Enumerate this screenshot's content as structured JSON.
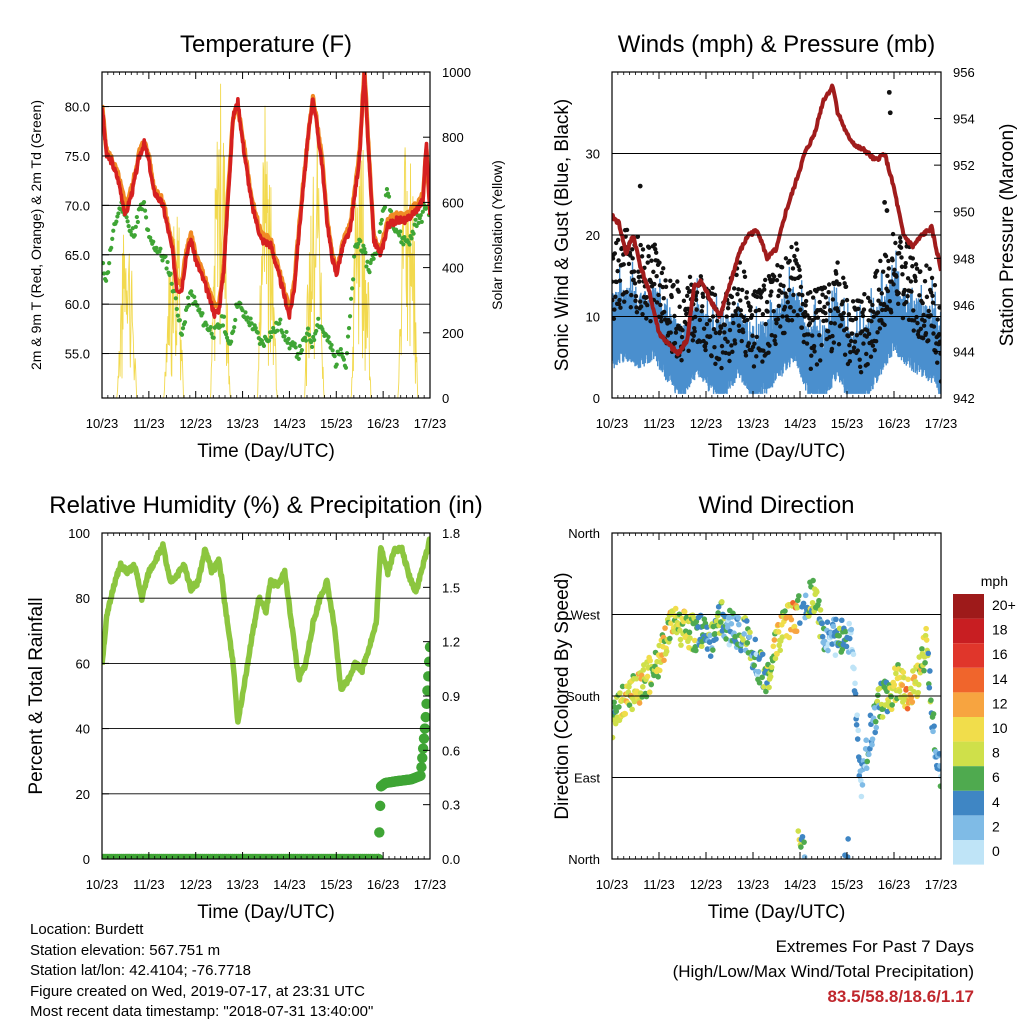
{
  "panels": {
    "temperature": {
      "title": "Temperature (F)",
      "xlabel": "Time (Day/UTC)",
      "ylabel_left": "2m & 9m T (Red, Orange) & 2m Td (Green)",
      "ylabel_right": "Solar Insolation (Yellow)"
    },
    "winds": {
      "title": "Winds (mph) & Pressure (mb)",
      "xlabel": "Time (Day/UTC)",
      "ylabel_left": "Sonic Wind & Gust (Blue, Black)",
      "ylabel_right": "Station Pressure (Maroon)"
    },
    "humidity": {
      "title": "Relative Humidity (%) & Precipitation (in)",
      "xlabel": "Time (Day/UTC)",
      "ylabel_left": "Percent & Total Rainfall"
    },
    "direction": {
      "title": "Wind Direction",
      "xlabel": "Time (Day/UTC)",
      "ylabel_left": "Direction (Colored By Speed)"
    }
  },
  "info": {
    "location": "Location: Burdett",
    "elevation": "Station elevation: 567.751 m",
    "latlon": "Station lat/lon: 42.4104; -76.7718",
    "created": "Figure created on Wed, 2019-07-17, at 23:31 UTC",
    "recent": "Most recent data timestamp: \"2018-07-31 13:40:00\""
  },
  "extremes": {
    "title": "Extremes For Past 7 Days",
    "subtitle": "(High/Low/Max Wind/Total Precipitation)",
    "values": "83.5/58.8/18.6/1.17",
    "value_color": "#c0272d"
  },
  "chart_data": [
    {
      "type": "line",
      "title": "Temperature (F)",
      "xlabel": "Time (Day/UTC)",
      "ylabel": "2m & 9m T (Red, Orange) & 2m Td (Green)",
      "y2label": "Solar Insolation (Yellow)",
      "x_ticks": [
        "10/23",
        "11/23",
        "12/23",
        "13/23",
        "14/23",
        "15/23",
        "16/23",
        "17/23"
      ],
      "xlim": [
        0,
        7
      ],
      "ylim": [
        50.5,
        83.5
      ],
      "y_ticks": [
        "55.0",
        "60.0",
        "65.0",
        "70.0",
        "75.0",
        "80.0"
      ],
      "y2lim": [
        0,
        1000
      ],
      "y2_ticks": [
        "0",
        "200",
        "400",
        "600",
        "800",
        "1000"
      ],
      "grid": "horizontal",
      "colors": {
        "t2m": "#d62020",
        "t9m": "#f08a24",
        "td": "#3fa535",
        "solar": "#f2d94e"
      },
      "series": [
        {
          "key": "t9m",
          "axis": "left",
          "style": "line",
          "x": [
            0,
            0.1,
            0.2,
            0.35,
            0.5,
            0.65,
            0.8,
            0.9,
            1,
            1.1,
            1.3,
            1.5,
            1.6,
            1.7,
            1.8,
            1.9,
            2,
            2.2,
            2.4,
            2.5,
            2.6,
            2.7,
            2.8,
            2.9,
            3,
            3.2,
            3.4,
            3.6,
            3.8,
            4,
            4.1,
            4.2,
            4.3,
            4.4,
            4.5,
            4.6,
            4.7,
            4.8,
            4.9,
            5,
            5.15,
            5.3,
            5.5,
            5.6,
            5.7,
            5.8,
            5.95,
            6.1,
            6.3,
            6.5,
            6.7,
            6.85,
            6.92,
            7
          ],
          "y": [
            80.2,
            75.5,
            74.8,
            73.0,
            70.0,
            72.0,
            75.5,
            76.5,
            75.0,
            72.0,
            70.5,
            66.0,
            62.5,
            62.0,
            65.5,
            67.0,
            65.0,
            62.5,
            59.8,
            60.0,
            64.0,
            72.0,
            79.0,
            80.0,
            77.0,
            70.5,
            67.0,
            66.5,
            63.0,
            59.5,
            62.0,
            67.5,
            72.5,
            77.0,
            81.0,
            78.0,
            74.5,
            69.0,
            65.5,
            63.5,
            66.5,
            68.0,
            75.5,
            84.0,
            75.0,
            67.0,
            65.5,
            68.5,
            69.0,
            69.0,
            70.0,
            71.0,
            76.0,
            69.5
          ]
        },
        {
          "key": "t2m",
          "axis": "left",
          "style": "line",
          "x": [
            0,
            0.1,
            0.2,
            0.35,
            0.5,
            0.65,
            0.8,
            0.9,
            1,
            1.1,
            1.3,
            1.5,
            1.6,
            1.7,
            1.8,
            1.9,
            2,
            2.2,
            2.4,
            2.5,
            2.6,
            2.7,
            2.8,
            2.9,
            3,
            3.2,
            3.4,
            3.6,
            3.8,
            4,
            4.1,
            4.2,
            4.3,
            4.4,
            4.5,
            4.6,
            4.7,
            4.8,
            4.9,
            5,
            5.15,
            5.3,
            5.5,
            5.6,
            5.7,
            5.8,
            5.95,
            6.1,
            6.3,
            6.5,
            6.7,
            6.85,
            6.92,
            7
          ],
          "y": [
            80.0,
            75.0,
            74.5,
            72.5,
            69.0,
            71.5,
            75.0,
            76.3,
            74.5,
            71.5,
            70.0,
            65.5,
            61.5,
            61.5,
            65.0,
            66.5,
            64.5,
            62.0,
            59.0,
            59.5,
            63.5,
            71.5,
            79.0,
            80.5,
            76.5,
            70.0,
            66.5,
            66.0,
            62.5,
            58.8,
            61.5,
            67.0,
            72.0,
            77.0,
            81.0,
            77.5,
            74.0,
            68.5,
            65.0,
            63.0,
            66.0,
            67.5,
            75.0,
            83.5,
            74.5,
            66.5,
            65.0,
            68.0,
            68.5,
            68.5,
            69.5,
            70.5,
            76.5,
            69.0
          ]
        },
        {
          "key": "td",
          "axis": "left",
          "style": "dots",
          "x": [
            0,
            0.1,
            0.2,
            0.3,
            0.4,
            0.5,
            0.6,
            0.7,
            0.8,
            0.9,
            1,
            1.2,
            1.4,
            1.6,
            1.7,
            1.8,
            1.9,
            2,
            2.2,
            2.4,
            2.6,
            2.7,
            2.8,
            2.9,
            3,
            3.2,
            3.4,
            3.6,
            3.8,
            4,
            4.2,
            4.4,
            4.5,
            4.6,
            4.8,
            4.9,
            5,
            5.1,
            5.2,
            5.3,
            5.4,
            5.5,
            5.6,
            5.7,
            5.8,
            5.9,
            6,
            6.1,
            6.2,
            6.4,
            6.6,
            6.7,
            6.8,
            6.9,
            7
          ],
          "y": [
            64.0,
            62.5,
            66.0,
            68.5,
            70.0,
            69.5,
            67.0,
            67.5,
            69.5,
            70.0,
            66.5,
            65.5,
            64.0,
            60.0,
            56.5,
            59.5,
            61.0,
            60.0,
            58.0,
            57.0,
            58.5,
            55.5,
            57.5,
            60.5,
            59.0,
            58.0,
            56.0,
            57.0,
            58.0,
            56.0,
            55.0,
            57.0,
            56.0,
            58.5,
            56.5,
            55.5,
            54.0,
            56.0,
            53.5,
            59.0,
            65.5,
            66.5,
            65.0,
            63.5,
            65.0,
            66.0,
            69.5,
            71.5,
            68.5,
            66.5,
            66.5,
            68.5,
            68.5,
            70.0,
            69.5
          ]
        },
        {
          "key": "solar",
          "axis": "right",
          "style": "thin-line",
          "day_peaks": [
            600,
            570,
            990,
            990,
            820,
            990,
            960,
            980,
            600
          ]
        }
      ]
    },
    {
      "type": "scatter",
      "title": "Winds (mph) & Pressure (mb)",
      "xlabel": "Time (Day/UTC)",
      "ylabel": "Sonic Wind & Gust (Blue, Black)",
      "y2label": "Station Pressure (Maroon)",
      "x_ticks": [
        "10/23",
        "11/23",
        "12/23",
        "13/23",
        "14/23",
        "15/23",
        "16/23",
        "17/23"
      ],
      "xlim": [
        0,
        7
      ],
      "ylim": [
        0,
        40
      ],
      "y_ticks": [
        "0",
        "10",
        "20",
        "30"
      ],
      "y2lim": [
        942,
        956
      ],
      "y2_ticks": [
        "942",
        "944",
        "946",
        "948",
        "950",
        "952",
        "954",
        "956"
      ],
      "grid": "horizontal",
      "colors": {
        "wind": "#4a8fce",
        "gust": "#111111",
        "pressure": "#a01c1c"
      },
      "series": [
        {
          "key": "wind",
          "axis": "left",
          "style": "dense-band",
          "x": [
            0,
            0.3,
            0.6,
            0.9,
            1.2,
            1.5,
            1.8,
            2.1,
            2.4,
            2.7,
            3.0,
            3.3,
            3.6,
            3.9,
            4.2,
            4.5,
            4.8,
            5.1,
            5.4,
            5.7,
            6.0,
            6.3,
            6.6,
            6.9,
            7
          ],
          "y": [
            8,
            9,
            8,
            9,
            6,
            4,
            7,
            5,
            4,
            7,
            4,
            5,
            7,
            9,
            4,
            4,
            7,
            3,
            4,
            7,
            10,
            8,
            7,
            6,
            3
          ]
        },
        {
          "key": "gust",
          "axis": "left",
          "style": "dots",
          "x": [
            0,
            0.3,
            0.6,
            0.9,
            1.2,
            1.5,
            1.8,
            2.1,
            2.4,
            2.7,
            3.0,
            3.3,
            3.6,
            3.9,
            4.2,
            4.5,
            4.8,
            5.1,
            5.4,
            5.7,
            6.0,
            6.3,
            6.6,
            6.9,
            7
          ],
          "y": [
            14,
            16,
            15,
            14,
            11,
            9,
            12,
            9,
            8,
            12,
            8,
            10,
            12,
            15,
            8,
            9,
            12,
            7,
            8,
            12,
            16,
            14,
            12,
            10,
            6
          ],
          "outliers": [
            [
              0.6,
              26
            ],
            [
              5.9,
              37.5
            ],
            [
              5.92,
              35
            ],
            [
              5.8,
              24
            ],
            [
              5.85,
              23
            ]
          ]
        },
        {
          "key": "pressure",
          "axis": "right",
          "style": "line",
          "x": [
            0,
            0.15,
            0.3,
            0.45,
            0.6,
            0.8,
            1.0,
            1.2,
            1.4,
            1.6,
            1.75,
            1.9,
            2.1,
            2.3,
            2.5,
            2.7,
            2.9,
            3.1,
            3.3,
            3.5,
            3.7,
            3.9,
            4.1,
            4.3,
            4.5,
            4.7,
            4.8,
            5.0,
            5.2,
            5.4,
            5.6,
            5.8,
            6.0,
            6.2,
            6.4,
            6.6,
            6.8,
            7.0
          ],
          "y": [
            949.8,
            949.5,
            948.2,
            949.0,
            947.7,
            946.5,
            944.8,
            944.3,
            943.9,
            944.5,
            946.8,
            947.0,
            946.2,
            945.5,
            946.8,
            948.2,
            949.0,
            949.2,
            948.0,
            948.4,
            950.0,
            951.2,
            952.5,
            953.3,
            954.8,
            955.4,
            954.3,
            953.3,
            952.8,
            952.6,
            952.2,
            952.5,
            951.0,
            949.0,
            948.5,
            949.0,
            949.3,
            947.5
          ]
        }
      ]
    },
    {
      "type": "line",
      "title": "Relative Humidity (%) & Precipitation (in)",
      "xlabel": "Time (Day/UTC)",
      "ylabel": "Percent & Total Rainfall",
      "x_ticks": [
        "10/23",
        "11/23",
        "12/23",
        "13/23",
        "14/23",
        "15/23",
        "16/23",
        "17/23"
      ],
      "xlim": [
        0,
        7
      ],
      "ylim": [
        0,
        100
      ],
      "y_ticks": [
        "0",
        "20",
        "40",
        "60",
        "80",
        "100"
      ],
      "y2lim": [
        0,
        1.8
      ],
      "y2_ticks": [
        "0.0",
        "0.3",
        "0.6",
        "0.9",
        "1.2",
        "1.5",
        "1.8"
      ],
      "grid": "horizontal",
      "colors": {
        "rh": "#8cc63f",
        "precip": "#3fa535"
      },
      "series": [
        {
          "key": "rh",
          "axis": "left",
          "style": "line",
          "x": [
            0,
            0.1,
            0.25,
            0.4,
            0.55,
            0.7,
            0.85,
            1.0,
            1.15,
            1.3,
            1.45,
            1.6,
            1.75,
            1.9,
            2.05,
            2.2,
            2.35,
            2.5,
            2.65,
            2.8,
            2.9,
            3.05,
            3.2,
            3.35,
            3.5,
            3.6,
            3.75,
            3.9,
            4.05,
            4.2,
            4.35,
            4.5,
            4.65,
            4.8,
            4.95,
            5.1,
            5.25,
            5.4,
            5.55,
            5.7,
            5.85,
            5.95,
            6.1,
            6.25,
            6.4,
            6.55,
            6.7,
            6.85,
            7.0
          ],
          "y": [
            60,
            74,
            84,
            90,
            88,
            90,
            80,
            88,
            92,
            96,
            85,
            87,
            90,
            83,
            85,
            95,
            88,
            92,
            75,
            60,
            42,
            55,
            68,
            80,
            76,
            85,
            84,
            88,
            72,
            55,
            60,
            72,
            80,
            85,
            72,
            52,
            55,
            60,
            58,
            65,
            72,
            96,
            88,
            95,
            95,
            87,
            82,
            90,
            98
          ]
        },
        {
          "key": "precip",
          "axis": "right",
          "style": "step-dots",
          "x": [
            0,
            5.9,
            5.95,
            6.05,
            6.3,
            6.6,
            6.8,
            6.85,
            6.9,
            6.95,
            7.0
          ],
          "y": [
            0,
            0,
            0.4,
            0.42,
            0.43,
            0.44,
            0.46,
            0.6,
            0.75,
            0.95,
            1.17
          ]
        }
      ]
    },
    {
      "type": "scatter",
      "title": "Wind Direction",
      "xlabel": "Time (Day/UTC)",
      "ylabel": "Direction (Colored By Speed)",
      "x_ticks": [
        "10/23",
        "11/23",
        "12/23",
        "13/23",
        "14/23",
        "15/23",
        "16/23",
        "17/23"
      ],
      "xlim": [
        0,
        7
      ],
      "ylim": [
        0,
        360
      ],
      "y_ticks": [
        "North",
        "East",
        "South",
        "West",
        "North"
      ],
      "grid": "horizontal",
      "colorbar": {
        "title": "mph",
        "labels": [
          "20+",
          "18",
          "16",
          "14",
          "12",
          "10",
          "8",
          "6",
          "4",
          "2",
          "0"
        ],
        "colors": [
          "#9e1a1a",
          "#c81e22",
          "#e0362b",
          "#f0652c",
          "#f7a440",
          "#f1dd4b",
          "#cfe04a",
          "#4faa4f",
          "#3f86c4",
          "#7fbbe6",
          "#bfe4f7"
        ]
      },
      "series": [
        {
          "key": "direction",
          "style": "dots",
          "x": [
            0,
            0.3,
            0.6,
            0.9,
            1.1,
            1.3,
            1.5,
            1.7,
            1.9,
            2.1,
            2.3,
            2.5,
            2.7,
            2.9,
            3.1,
            3.3,
            3.5,
            3.7,
            3.9,
            4.1,
            4.3,
            4.5,
            4.7,
            4.9,
            5.1,
            5.3,
            5.5,
            5.7,
            5.9,
            6.1,
            6.3,
            6.5,
            6.7,
            6.9
          ],
          "y": [
            150,
            180,
            190,
            210,
            235,
            260,
            255,
            250,
            250,
            240,
            270,
            255,
            250,
            245,
            215,
            200,
            240,
            260,
            265,
            280,
            290,
            250,
            245,
            245,
            240,
            80,
            140,
            175,
            180,
            200,
            180,
            200,
            240,
            100
          ],
          "speed": [
            6,
            10,
            10,
            8,
            10,
            10,
            10,
            8,
            6,
            6,
            8,
            4,
            6,
            6,
            4,
            8,
            10,
            10,
            12,
            4,
            10,
            4,
            3,
            6,
            3,
            3,
            4,
            6,
            8,
            10,
            12,
            10,
            8,
            4
          ]
        }
      ]
    }
  ]
}
